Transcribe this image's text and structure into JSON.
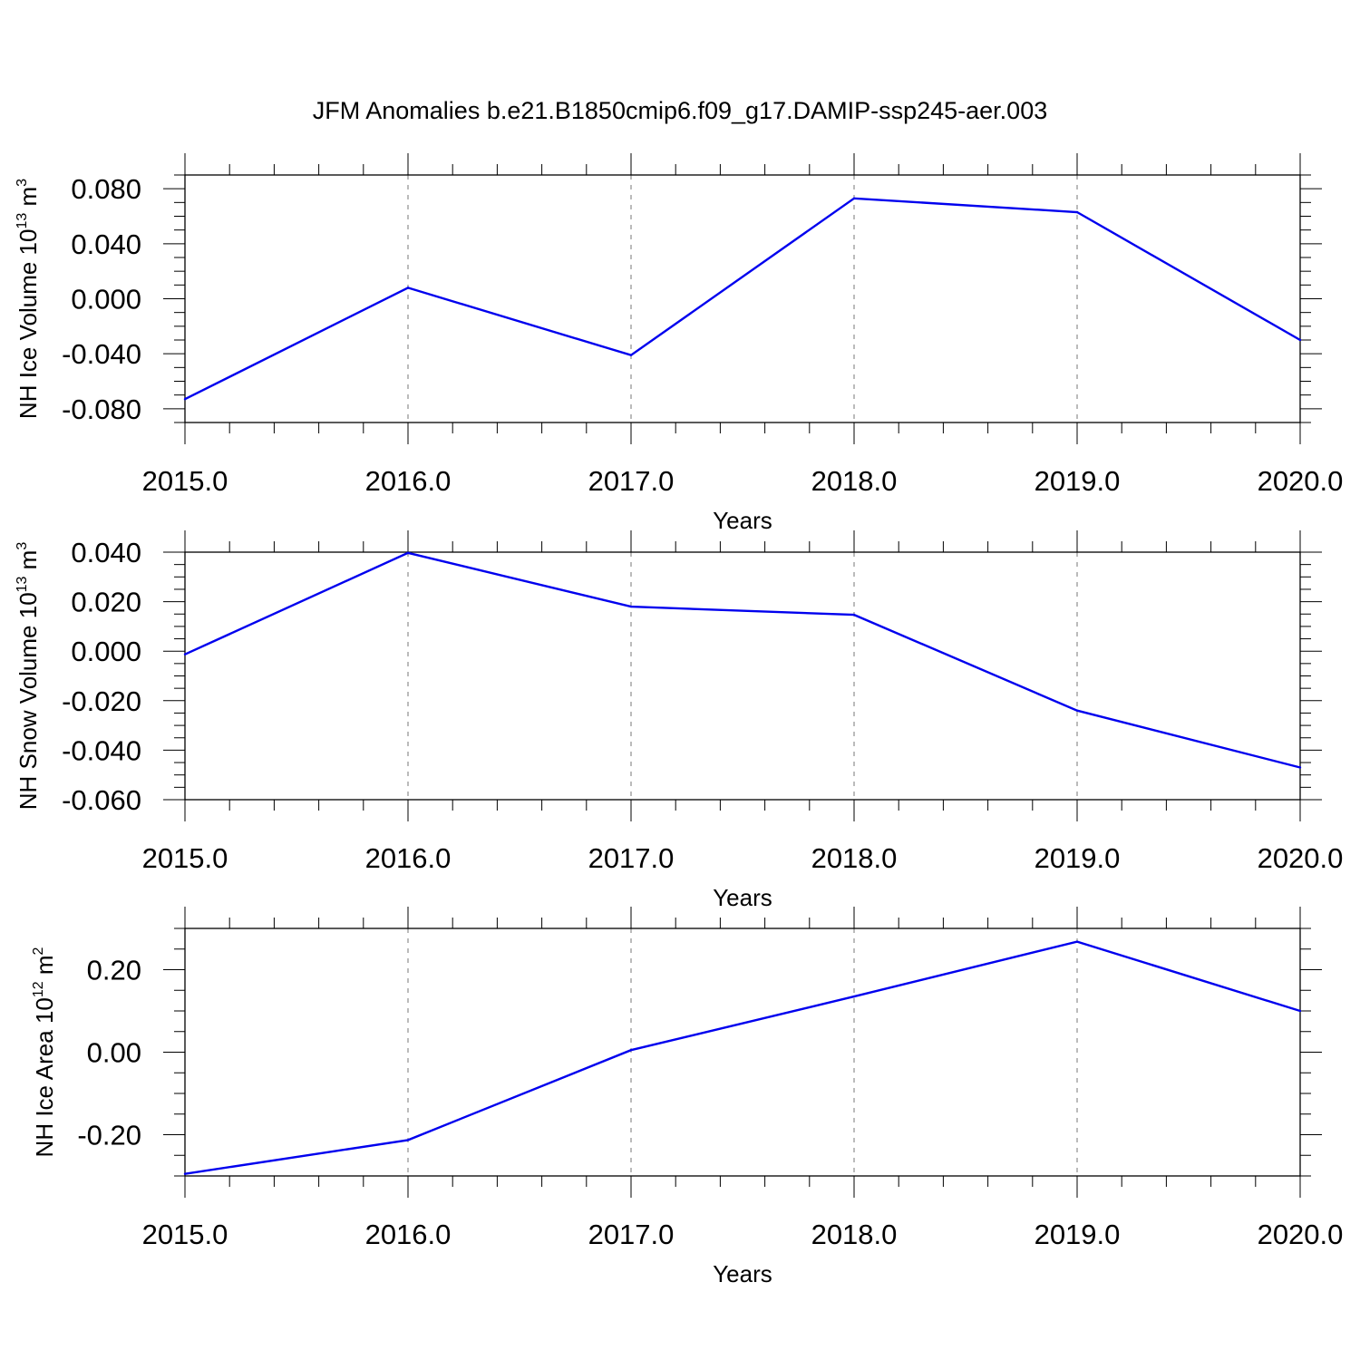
{
  "title": "JFM Anomalies b.e21.B1850cmip6.f09_g17.DAMIP-ssp245-aer.003",
  "chart_data": [
    {
      "type": "line",
      "ylabel": {
        "text": "NH Ice Volume 10",
        "sup": "13",
        "unit": " m",
        "unit_sup": "3"
      },
      "xlabel": "Years",
      "xlim": [
        2015,
        2020
      ],
      "ylim": [
        -0.09,
        0.09
      ],
      "xticks": [
        "2015.0",
        "2016.0",
        "2017.0",
        "2018.0",
        "2019.0",
        "2020.0"
      ],
      "yticks": [
        "0.080",
        "0.040",
        "0.000",
        "-0.040",
        "-0.080"
      ],
      "ytick_values": [
        0.08,
        0.04,
        0.0,
        -0.04,
        -0.08
      ],
      "y_minor_step": 0.01,
      "grid": "vertical dashed at major x ticks",
      "series": [
        {
          "color": "#0000ee",
          "x": [
            2015,
            2016,
            2017,
            2018,
            2019,
            2020
          ],
          "y": [
            -0.073,
            0.008,
            -0.041,
            0.073,
            0.063,
            -0.03
          ]
        }
      ]
    },
    {
      "type": "line",
      "ylabel": {
        "text": "NH Snow Volume 10",
        "sup": "13",
        "unit": " m",
        "unit_sup": "3"
      },
      "xlabel": "Years",
      "xlim": [
        2015,
        2020
      ],
      "ylim": [
        -0.06,
        0.04
      ],
      "xticks": [
        "2015.0",
        "2016.0",
        "2017.0",
        "2018.0",
        "2019.0",
        "2020.0"
      ],
      "yticks": [
        "0.040",
        "0.020",
        "0.000",
        "-0.020",
        "-0.040",
        "-0.060"
      ],
      "ytick_values": [
        0.04,
        0.02,
        0.0,
        -0.02,
        -0.04,
        -0.06
      ],
      "y_minor_step": 0.005,
      "grid": "vertical dashed at major x ticks",
      "series": [
        {
          "color": "#0000ee",
          "x": [
            2015,
            2016,
            2017,
            2018,
            2019,
            2020
          ],
          "y": [
            -0.0013,
            0.0397,
            0.018,
            0.0147,
            -0.024,
            -0.047
          ]
        }
      ]
    },
    {
      "type": "line",
      "ylabel": {
        "text": "NH Ice Area 10",
        "sup": "12",
        "unit": " m",
        "unit_sup": "2"
      },
      "xlabel": "Years",
      "xlim": [
        2015,
        2020
      ],
      "ylim": [
        -0.3,
        0.3
      ],
      "xticks": [
        "2015.0",
        "2016.0",
        "2017.0",
        "2018.0",
        "2019.0",
        "2020.0"
      ],
      "yticks": [
        "0.20",
        "0.00",
        "-0.20"
      ],
      "ytick_values": [
        0.2,
        0.0,
        -0.2
      ],
      "y_minor_step": 0.05,
      "grid": "vertical dashed at major x ticks",
      "series": [
        {
          "color": "#0000ee",
          "x": [
            2015,
            2016,
            2017,
            2018,
            2019,
            2020
          ],
          "y": [
            -0.295,
            -0.213,
            0.005,
            0.135,
            0.268,
            0.1
          ]
        }
      ]
    }
  ]
}
